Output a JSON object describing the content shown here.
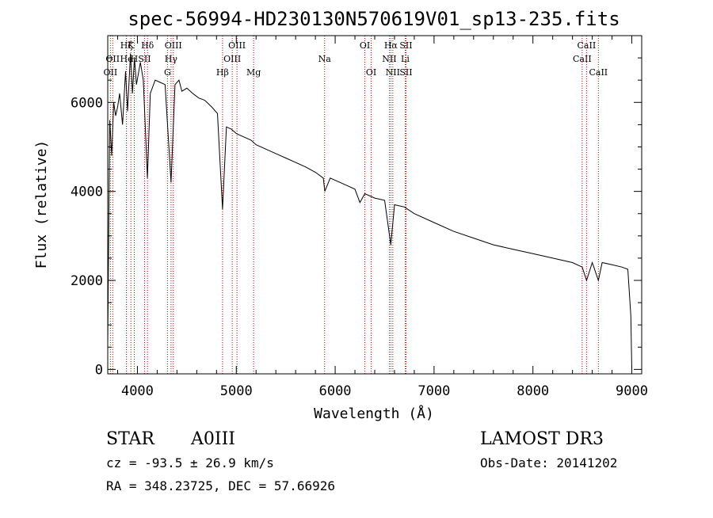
{
  "chart_data": {
    "type": "line",
    "title": "spec-56994-HD230130N570619V01_sp13-235.fits",
    "xlabel": "Wavelength (Å)",
    "ylabel": "Flux (relative)",
    "xlim": [
      3700,
      9100
    ],
    "ylim": [
      -100,
      7500
    ],
    "x_ticks": [
      "4000",
      "5000",
      "6000",
      "7000",
      "8000",
      "9000"
    ],
    "x_tick_values": [
      4000,
      5000,
      6000,
      7000,
      8000,
      9000
    ],
    "y_ticks": [
      "0",
      "2000",
      "4000",
      "6000"
    ],
    "y_tick_values": [
      0,
      2000,
      4000,
      6000
    ],
    "series": [
      {
        "name": "spectrum",
        "x": [
          3700,
          3720,
          3740,
          3760,
          3780,
          3800,
          3820,
          3850,
          3880,
          3900,
          3930,
          3950,
          3970,
          3990,
          4030,
          4060,
          4101,
          4130,
          4180,
          4230,
          4280,
          4340,
          4380,
          4420,
          4450,
          4500,
          4560,
          4620,
          4680,
          4750,
          4810,
          4861,
          4900,
          4950,
          5000,
          5050,
          5100,
          5150,
          5200,
          5300,
          5400,
          5500,
          5600,
          5700,
          5800,
          5880,
          5895,
          5950,
          6100,
          6200,
          6250,
          6300,
          6400,
          6500,
          6563,
          6600,
          6700,
          6800,
          7000,
          7200,
          7400,
          7600,
          7800,
          8000,
          8200,
          8400,
          8498,
          8542,
          8600,
          8662,
          8700,
          8800,
          8900,
          8960,
          8990,
          9000
        ],
        "y": [
          600,
          5600,
          4800,
          6000,
          5700,
          5900,
          6200,
          5500,
          6700,
          5800,
          7100,
          6200,
          7000,
          6400,
          6900,
          6500,
          4300,
          6200,
          6500,
          6450,
          6400,
          4200,
          6400,
          6500,
          6250,
          6320,
          6200,
          6100,
          6050,
          5900,
          5750,
          3600,
          5450,
          5400,
          5300,
          5250,
          5200,
          5150,
          5050,
          4950,
          4850,
          4750,
          4650,
          4550,
          4430,
          4300,
          4000,
          4300,
          4150,
          4050,
          3750,
          3950,
          3850,
          3800,
          2800,
          3700,
          3650,
          3500,
          3300,
          3100,
          2950,
          2800,
          2700,
          2600,
          2500,
          2400,
          2300,
          2000,
          2400,
          2000,
          2400,
          2350,
          2300,
          2250,
          1200,
          0
        ]
      }
    ],
    "lines": [
      {
        "wl": 3727,
        "label": "OII",
        "row": 3
      },
      {
        "wl": 3750,
        "label": "OII",
        "row": 2
      },
      {
        "wl": 3889,
        "label": "Hζ",
        "row": 1
      },
      {
        "wl": 3889,
        "label": "He",
        "row": 2
      },
      {
        "wl": 3934,
        "label": "K",
        "row": 1
      },
      {
        "wl": 3968,
        "label": "H",
        "row": 2
      },
      {
        "wl": 4072,
        "label": "SII",
        "row": 2
      },
      {
        "wl": 4102,
        "label": "Hδ",
        "row": 1
      },
      {
        "wl": 4304,
        "label": "G",
        "row": 3
      },
      {
        "wl": 4340,
        "label": "Hγ",
        "row": 2
      },
      {
        "wl": 4363,
        "label": "OIII",
        "row": 1
      },
      {
        "wl": 4861,
        "label": "Hβ",
        "row": 3
      },
      {
        "wl": 4959,
        "label": "OIII",
        "row": 2
      },
      {
        "wl": 5007,
        "label": "OIII",
        "row": 1
      },
      {
        "wl": 5175,
        "label": "Mg",
        "row": 3
      },
      {
        "wl": 5893,
        "label": "Na",
        "row": 2
      },
      {
        "wl": 6300,
        "label": "OI",
        "row": 1
      },
      {
        "wl": 6364,
        "label": "OI",
        "row": 3
      },
      {
        "wl": 6548,
        "label": "NII",
        "row": 2
      },
      {
        "wl": 6563,
        "label": "Hα",
        "row": 1
      },
      {
        "wl": 6583,
        "label": "NII",
        "row": 3
      },
      {
        "wl": 6716,
        "label": "SII",
        "row": 1
      },
      {
        "wl": 6716,
        "label": "SII",
        "row": 3
      },
      {
        "wl": 6708,
        "label": "Li",
        "row": 2
      },
      {
        "wl": 8498,
        "label": "CaII",
        "row": 2
      },
      {
        "wl": 8542,
        "label": "CaII",
        "row": 1
      },
      {
        "wl": 8662,
        "label": "CaII",
        "row": 3
      }
    ]
  },
  "info": {
    "object_class": "STAR",
    "subclass": "A0III",
    "cz": "cz = -93.5 ± 26.9 km/s",
    "radec": "RA = 348.23725, DEC =  57.66926",
    "survey": "LAMOST DR3",
    "obs_date": "Obs-Date: 20141202"
  }
}
